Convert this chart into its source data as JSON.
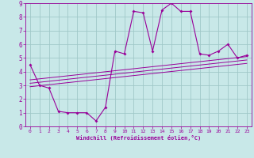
{
  "title": "",
  "xlabel": "Windchill (Refroidissement éolien,°C)",
  "ylabel": "",
  "bg_color": "#c8e8e8",
  "grid_color": "#a0c8c8",
  "line_color": "#990099",
  "xlim": [
    -0.5,
    23.5
  ],
  "ylim": [
    0,
    9
  ],
  "xticks": [
    0,
    1,
    2,
    3,
    4,
    5,
    6,
    7,
    8,
    9,
    10,
    11,
    12,
    13,
    14,
    15,
    16,
    17,
    18,
    19,
    20,
    21,
    22,
    23
  ],
  "yticks": [
    0,
    1,
    2,
    3,
    4,
    5,
    6,
    7,
    8,
    9
  ],
  "main_x": [
    0,
    1,
    2,
    3,
    4,
    5,
    6,
    7,
    8,
    9,
    10,
    11,
    12,
    13,
    14,
    15,
    16,
    17,
    18,
    19,
    20,
    21,
    22,
    23
  ],
  "main_y": [
    4.5,
    3.0,
    2.8,
    1.1,
    1.0,
    1.0,
    1.0,
    0.4,
    1.4,
    5.5,
    5.3,
    8.4,
    8.3,
    5.5,
    8.5,
    9.0,
    8.4,
    8.4,
    5.3,
    5.2,
    5.5,
    6.0,
    5.0,
    5.2
  ],
  "reg_lines": [
    {
      "x0": 0,
      "x1": 23,
      "y0": 2.9,
      "y1": 4.6
    },
    {
      "x0": 0,
      "x1": 23,
      "y0": 3.15,
      "y1": 4.85
    },
    {
      "x0": 0,
      "x1": 23,
      "y0": 3.4,
      "y1": 5.1
    }
  ]
}
